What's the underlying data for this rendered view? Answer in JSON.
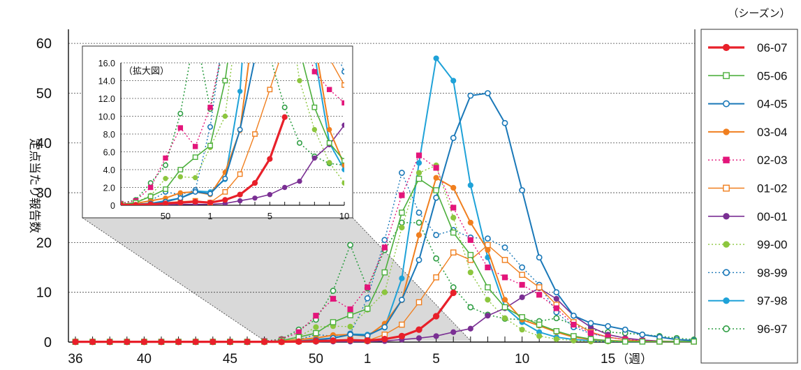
{
  "chart_data": {
    "type": "line",
    "ylabel": "定点当たり報告数",
    "xlabel_unit": "（週）",
    "ylim": [
      0,
      60
    ],
    "yticks": [
      "0",
      "10",
      "20",
      "30",
      "40",
      "50",
      "60"
    ],
    "xticks": [
      {
        "week": 36,
        "label": "36"
      },
      {
        "week": 40,
        "label": "40"
      },
      {
        "week": 45,
        "label": "45"
      },
      {
        "week": 50,
        "label": "50"
      },
      {
        "week": 1,
        "label": "1"
      },
      {
        "week": 5,
        "label": "5"
      },
      {
        "week": 10,
        "label": "10"
      },
      {
        "week": 15,
        "label": "15"
      }
    ],
    "grid": "horizontal dotted",
    "legend_title": "（シーズン）",
    "legend_position": "right",
    "weeks": [
      "36",
      "37",
      "38",
      "39",
      "40",
      "41",
      "42",
      "43",
      "44",
      "45",
      "46",
      "47",
      "48",
      "49",
      "50",
      "51",
      "52",
      "1",
      "2",
      "3",
      "4",
      "5",
      "6",
      "7",
      "8",
      "9",
      "10",
      "11",
      "12",
      "13",
      "14",
      "15",
      "16",
      "17",
      "18",
      "19",
      "20"
    ],
    "series": [
      {
        "name": "06-07",
        "color": "#e8202a",
        "dash": "",
        "marker": "filled-circle",
        "width": 3.2,
        "values": [
          0.05,
          0.05,
          0.05,
          0.05,
          0.05,
          0.05,
          0.05,
          0.05,
          0.05,
          0.05,
          0.05,
          0.05,
          0.05,
          0.1,
          0.2,
          0.3,
          0.4,
          0.3,
          0.6,
          1.2,
          2.5,
          5.2,
          9.9
        ]
      },
      {
        "name": "05-06",
        "color": "#4caf3c",
        "dash": "",
        "marker": "open-square",
        "width": 1.6,
        "values": [
          0.05,
          0.05,
          0.05,
          0.05,
          0.05,
          0.05,
          0.05,
          0.05,
          0.05,
          0.05,
          0.05,
          0.1,
          0.3,
          1.0,
          1.8,
          4.0,
          5.4,
          6.7,
          14.0,
          26.0,
          32.8,
          30.5,
          22.0,
          17.5,
          11.0,
          7.0,
          5.0,
          3.5,
          2.2,
          1.2,
          0.6,
          0.3,
          0.1,
          0.1,
          0.1,
          0.1,
          0.1
        ]
      },
      {
        "name": "04-05",
        "color": "#1a78b8",
        "dash": "",
        "marker": "open-circle",
        "width": 2.0,
        "values": [
          0.05,
          0.05,
          0.05,
          0.05,
          0.05,
          0.05,
          0.05,
          0.05,
          0.05,
          0.05,
          0.05,
          0.1,
          0.1,
          0.2,
          0.4,
          0.8,
          1.5,
          1.3,
          3.0,
          8.5,
          16.5,
          29.0,
          41.0,
          49.5,
          50.0,
          44.0,
          30.5,
          17.0,
          10.0,
          5.3,
          3.8,
          3.2,
          2.5,
          1.5,
          1.0,
          0.5,
          0.3
        ]
      },
      {
        "name": "03-04",
        "color": "#f07f1f",
        "dash": "",
        "marker": "filled-circle",
        "width": 2.0,
        "values": [
          0.05,
          0.05,
          0.05,
          0.05,
          0.05,
          0.05,
          0.05,
          0.05,
          0.05,
          0.05,
          0.05,
          0.1,
          0.2,
          0.5,
          0.8,
          1.4,
          1.5,
          1.2,
          3.7,
          8.4,
          21.5,
          33.0,
          31.0,
          24.0,
          18.5,
          8.5,
          4.5,
          3.3,
          2.0,
          1.0,
          0.5,
          0.3,
          0.2,
          0.1,
          0.1,
          0.1,
          0.1
        ]
      },
      {
        "name": "02-03",
        "color": "#e3157a",
        "dash": "2,3",
        "marker": "filled-square",
        "width": 1.4,
        "values": [
          0.05,
          0.05,
          0.05,
          0.05,
          0.05,
          0.05,
          0.05,
          0.05,
          0.05,
          0.05,
          0.05,
          0.2,
          0.5,
          2.0,
          5.3,
          8.7,
          6.6,
          11.0,
          19.0,
          29.5,
          37.5,
          35.0,
          27.0,
          20.5,
          15.0,
          13.0,
          11.5,
          9.5,
          6.8,
          3.5,
          1.8,
          1.0,
          0.5,
          0.3,
          0.2,
          0.1,
          0.1
        ]
      },
      {
        "name": "01-02",
        "color": "#f07f1f",
        "dash": "",
        "marker": "open-square",
        "width": 1.4,
        "values": [
          0.05,
          0.05,
          0.05,
          0.05,
          0.05,
          0.05,
          0.05,
          0.05,
          0.05,
          0.05,
          0.05,
          0.1,
          0.1,
          0.2,
          0.3,
          0.4,
          0.5,
          0.3,
          1.5,
          3.5,
          8.0,
          13.0,
          18.0,
          16.5,
          19.5,
          16.5,
          13.5,
          11.0,
          7.5,
          4.0,
          2.0,
          1.0,
          0.5,
          0.2,
          0.1,
          0.1,
          0.1
        ]
      },
      {
        "name": "00-01",
        "color": "#7a2f93",
        "dash": "",
        "marker": "filled-circle",
        "width": 1.6,
        "values": [
          0.05,
          0.05,
          0.05,
          0.05,
          0.05,
          0.05,
          0.05,
          0.05,
          0.05,
          0.05,
          0.05,
          0.05,
          0.05,
          0.05,
          0.05,
          0.1,
          0.1,
          0.1,
          0.2,
          0.5,
          0.8,
          1.2,
          2.0,
          2.7,
          5.3,
          6.8,
          9.0,
          10.8,
          8.7,
          5.3,
          3.0,
          1.5,
          0.8,
          0.4,
          0.2,
          0.1,
          0.1
        ]
      },
      {
        "name": "99-00",
        "color": "#8cc63e",
        "dash": "2,3",
        "marker": "filled-circle",
        "width": 1.4,
        "values": [
          0.05,
          0.05,
          0.05,
          0.05,
          0.05,
          0.05,
          0.05,
          0.05,
          0.05,
          0.05,
          0.05,
          0.1,
          0.3,
          1.1,
          3.0,
          3.2,
          3.1,
          6.5,
          10.0,
          23.0,
          34.0,
          35.5,
          25.0,
          14.0,
          8.5,
          4.8,
          2.5,
          1.2,
          0.6,
          0.3,
          0.1,
          0.1,
          0.1,
          0.1,
          0.1,
          0.1,
          0.1
        ]
      },
      {
        "name": "98-99",
        "color": "#1a78b8",
        "dash": "2,3",
        "marker": "open-circle",
        "width": 1.4,
        "values": [
          0.05,
          0.05,
          0.05,
          0.05,
          0.05,
          0.05,
          0.05,
          0.05,
          0.05,
          0.05,
          0.05,
          0.1,
          0.2,
          0.5,
          1.5,
          1.2,
          1.7,
          8.8,
          20.5,
          34.0,
          26.0,
          21.5,
          22.5,
          21.0,
          20.8,
          19.0,
          15.0,
          11.5,
          6.0,
          3.0,
          1.7,
          1.0,
          0.5,
          0.2,
          0.1,
          0.1,
          0.1
        ]
      },
      {
        "name": "97-98",
        "color": "#1fa2d8",
        "dash": "",
        "marker": "filled-circle",
        "width": 2.0,
        "values": [
          0.05,
          0.05,
          0.05,
          0.05,
          0.05,
          0.05,
          0.05,
          0.05,
          0.05,
          0.05,
          0.05,
          0.05,
          0.1,
          0.2,
          0.5,
          0.8,
          1.6,
          1.5,
          2.9,
          12.8,
          36.0,
          57.0,
          52.5,
          31.5,
          17.0,
          7.0,
          4.0,
          2.0,
          1.0,
          0.5,
          0.3,
          0.2,
          0.1,
          0.1,
          0.1,
          0.1,
          0.1
        ]
      },
      {
        "name": "96-97",
        "color": "#2f9e44",
        "dash": "2,3",
        "marker": "open-circle",
        "width": 1.6,
        "values": [
          0.05,
          0.05,
          0.05,
          0.05,
          0.05,
          0.05,
          0.05,
          0.05,
          0.05,
          0.05,
          0.05,
          0.2,
          0.6,
          2.5,
          4.5,
          10.3,
          19.5,
          10.8,
          18.5,
          24.0,
          24.0,
          16.8,
          11.0,
          7.0,
          5.5,
          4.7,
          4.5,
          4.2,
          4.8,
          3.5,
          2.5,
          2.0,
          1.8,
          1.5,
          1.2,
          0.8,
          0.5
        ]
      }
    ],
    "inset": {
      "label": "（拡大図）",
      "ylim": [
        0,
        16
      ],
      "yticks": [
        "0",
        "2.0",
        "4.0",
        "6.0",
        "8.0",
        "10.0",
        "12.0",
        "14.0",
        "16.0"
      ],
      "xticks": [
        {
          "week": 50,
          "label": "50"
        },
        {
          "week": 1,
          "label": "1"
        },
        {
          "week": 5,
          "label": "5"
        },
        {
          "week": 10,
          "label": "10"
        }
      ],
      "start_week": "47",
      "end_week": "10"
    }
  }
}
